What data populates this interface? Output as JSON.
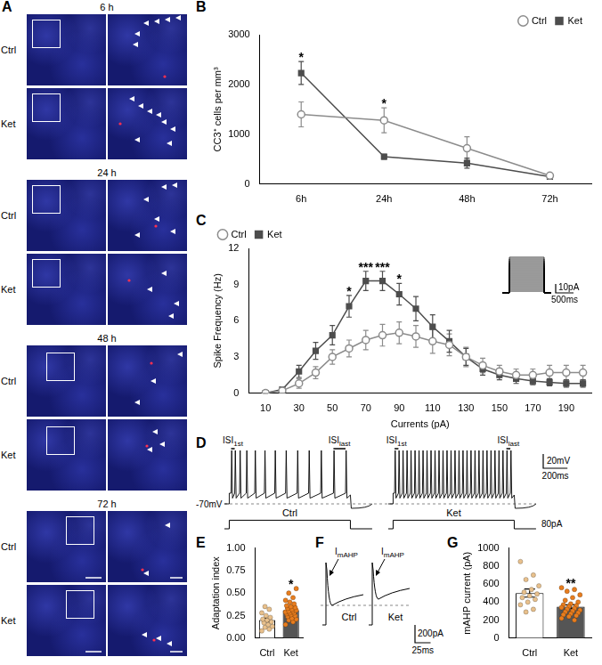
{
  "panel_A": {
    "panel": "A",
    "groups": [
      {
        "label": "6 h",
        "rows": [
          "Ctrl",
          "Ket"
        ]
      },
      {
        "label": "24 h",
        "rows": [
          "Ctrl",
          "Ket"
        ]
      },
      {
        "label": "48 h",
        "rows": [
          "Ctrl",
          "Ket"
        ]
      },
      {
        "label": "72 h",
        "rows": [
          "Ctrl",
          "Ket"
        ]
      }
    ]
  },
  "chart_data": [
    {
      "panel": "B",
      "type": "line",
      "y_label": "CC3⁺ cells per mm³",
      "categories": [
        "6h",
        "24h",
        "48h",
        "72h"
      ],
      "series": [
        {
          "name": "Ctrl",
          "color": "#8c8c8c",
          "marker": "circle_open",
          "values": [
            1400,
            1280,
            720,
            170
          ],
          "errors": [
            250,
            250,
            230,
            40
          ]
        },
        {
          "name": "Ket",
          "color": "#4d4d4d",
          "marker": "square",
          "values": [
            2230,
            550,
            420,
            150
          ],
          "errors": [
            230,
            50,
            100,
            30
          ]
        }
      ],
      "ylim": [
        0,
        3000
      ],
      "yticks": [
        0,
        1000,
        2000,
        3000
      ],
      "grid": false,
      "legend": "top-right",
      "annotations": [
        {
          "x": "6h",
          "text": "*"
        },
        {
          "x": "24h",
          "text": "*"
        }
      ]
    },
    {
      "panel": "C",
      "type": "line",
      "x_label": "Currents (pA)",
      "y_label": "Spike Frequency (Hz)",
      "x": [
        10,
        20,
        30,
        40,
        50,
        60,
        70,
        80,
        90,
        100,
        110,
        120,
        130,
        140,
        150,
        160,
        170,
        180,
        190,
        200
      ],
      "series": [
        {
          "name": "Ctrl",
          "color": "#8c8c8c",
          "marker": "circle_open",
          "values": [
            0,
            0.2,
            0.8,
            1.7,
            3.0,
            3.7,
            4.4,
            4.8,
            5.0,
            4.7,
            4.3,
            4.0,
            3.0,
            2.3,
            1.8,
            1.5,
            1.5,
            1.7,
            1.7,
            1.7
          ],
          "errors": [
            0,
            0.1,
            0.4,
            0.5,
            0.6,
            0.7,
            0.8,
            0.9,
            0.9,
            0.9,
            1.0,
            0.9,
            0.8,
            0.6,
            0.5,
            0.5,
            0.5,
            0.6,
            0.6,
            0.6
          ]
        },
        {
          "name": "Ket",
          "color": "#4d4d4d",
          "marker": "square",
          "values": [
            0,
            0.3,
            1.8,
            3.5,
            4.8,
            7.2,
            9.3,
            9.3,
            8.2,
            7.0,
            5.5,
            4.3,
            3.0,
            2.0,
            1.5,
            1.2,
            1.0,
            0.9,
            0.8,
            0.8
          ],
          "errors": [
            0,
            0.2,
            0.5,
            0.7,
            0.8,
            0.9,
            0.8,
            0.8,
            0.9,
            1.0,
            1.0,
            0.9,
            0.7,
            0.5,
            0.4,
            0.4,
            0.3,
            0.3,
            0.3,
            0.3
          ]
        }
      ],
      "xlim": [
        0,
        205
      ],
      "xticks": [
        10,
        30,
        50,
        70,
        90,
        110,
        130,
        150,
        170,
        190
      ],
      "ylim": [
        0,
        12
      ],
      "yticks": [
        0,
        3,
        6,
        9,
        12
      ],
      "grid": false,
      "legend": "top-left",
      "annotations": [
        {
          "x": 60,
          "text": "*"
        },
        {
          "x": 70,
          "text": "***"
        },
        {
          "x": 80,
          "text": "***"
        },
        {
          "x": 90,
          "text": "*"
        }
      ],
      "inset": {
        "labels": [
          "10pA",
          "500ms"
        ]
      }
    },
    {
      "panel": "E",
      "type": "bar",
      "y_label": "Adaptation index",
      "categories": [
        "Ctrl",
        "Ket"
      ],
      "values": [
        0.2,
        0.31
      ],
      "errors": [
        0.02,
        0.02
      ],
      "colors": [
        "#ffffff",
        "#555555"
      ],
      "points": [
        [
          0.08,
          0.1,
          0.12,
          0.13,
          0.15,
          0.17,
          0.18,
          0.2,
          0.21,
          0.23,
          0.25,
          0.28,
          0.32,
          0.35
        ],
        [
          0.15,
          0.18,
          0.2,
          0.21,
          0.22,
          0.24,
          0.25,
          0.26,
          0.27,
          0.28,
          0.28,
          0.29,
          0.3,
          0.3,
          0.31,
          0.32,
          0.33,
          0.34,
          0.35,
          0.36,
          0.38,
          0.4,
          0.42,
          0.45,
          0.5,
          0.55
        ]
      ],
      "point_colors": [
        "#e8c08c",
        "#e87d1e"
      ],
      "ylim": [
        0,
        1
      ],
      "yticks": [
        {
          "value": 0,
          "label": "0.00"
        },
        0.25,
        {
          "value": 0.5,
          "label": "0.50"
        },
        0.75,
        {
          "value": 1,
          "label": "1.00"
        }
      ],
      "grid": false,
      "annotations": [
        {
          "x": "Ket",
          "text": "*"
        }
      ]
    },
    {
      "panel": "G",
      "type": "bar",
      "y_label": "mAHP current (pA)",
      "categories": [
        "Ctrl",
        "Ket"
      ],
      "values": [
        500,
        350
      ],
      "errors": [
        45,
        20
      ],
      "colors": [
        "#ffffff",
        "#555555"
      ],
      "points": [
        [
          850,
          700,
          650,
          580,
          540,
          510,
          490,
          470,
          450,
          430,
          400,
          370,
          320,
          290
        ],
        [
          560,
          540,
          520,
          480,
          450,
          420,
          400,
          380,
          370,
          360,
          350,
          340,
          330,
          320,
          310,
          300,
          290,
          280,
          270,
          260,
          250,
          240,
          220,
          200
        ]
      ],
      "point_colors": [
        "#e8c08c",
        "#e87d1e"
      ],
      "ylim": [
        0,
        1000
      ],
      "yticks": [
        0,
        200,
        400,
        600,
        800,
        1000
      ],
      "grid": false,
      "annotations": [
        {
          "x": "Ket",
          "text": "**"
        }
      ]
    }
  ],
  "panel_D": {
    "panel": "D",
    "step_ms": 1000,
    "rest_label": "-70mV",
    "isi_first": {
      "text": "ISI",
      "sub": "1st"
    },
    "isi_last": {
      "text": "ISI",
      "sub": "last"
    },
    "traces": [
      {
        "label": "Ctrl",
        "spike_times_ms": [
          15,
          45,
          85,
          140,
          210,
          290,
          375,
          465,
          560,
          655,
          755,
          860,
          960
        ]
      },
      {
        "label": "Ket",
        "spike_times_ms": [
          12,
          44,
          77,
          110,
          143,
          176,
          209,
          242,
          275,
          308,
          341,
          374,
          407,
          440,
          473,
          506,
          539,
          572,
          605,
          638,
          671,
          704,
          737,
          770,
          803,
          836,
          869,
          902,
          935,
          968
        ]
      }
    ],
    "scale_bars": [
      {
        "value": 20,
        "label": "20mV"
      },
      {
        "value": 200,
        "label": "200ms"
      },
      {
        "value": 80,
        "label": "80pA"
      }
    ]
  },
  "panel_F": {
    "panel": "F",
    "current_label": {
      "text": "I",
      "sub": "mAHP"
    },
    "traces": [
      "Ctrl",
      "Ket"
    ],
    "scale_bars": [
      {
        "value": 200,
        "label": "200pA"
      },
      {
        "value": 25,
        "label": "25ms"
      }
    ]
  }
}
